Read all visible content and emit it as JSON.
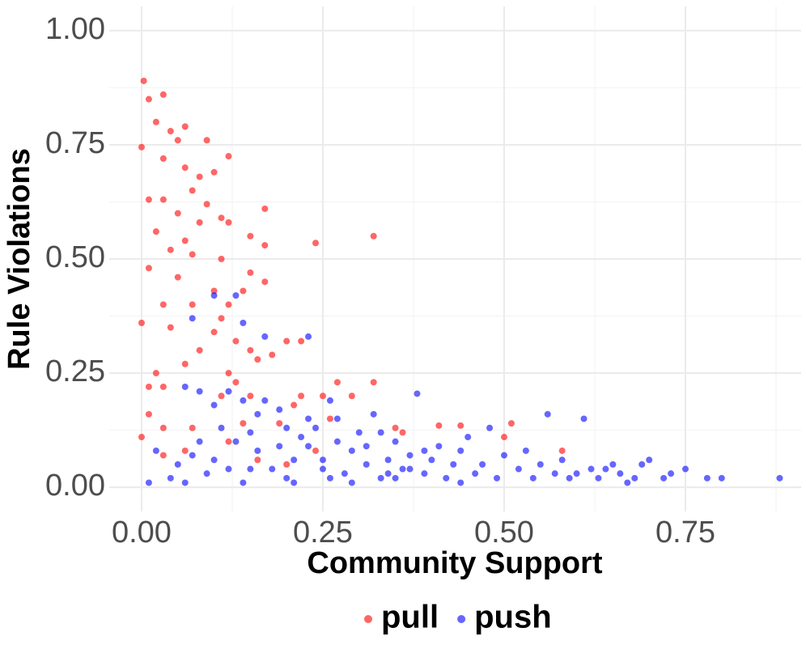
{
  "chart_data": {
    "type": "scatter",
    "xlabel": "Community Support",
    "ylabel": "Rule Violations",
    "xlim": [
      -0.0446,
      0.9096
    ],
    "ylim": [
      -0.053,
      1.053
    ],
    "xticks": [
      {
        "value": 0,
        "label": "0.00"
      },
      {
        "value": 0.25,
        "label": "0.25"
      },
      {
        "value": 0.5,
        "label": "0.50"
      },
      {
        "value": 0.75,
        "label": "0.75"
      }
    ],
    "yticks": [
      {
        "value": 0,
        "label": "0.00"
      },
      {
        "value": 0.25,
        "label": "0.25"
      },
      {
        "value": 0.5,
        "label": "0.50"
      },
      {
        "value": 0.75,
        "label": "0.75"
      },
      {
        "value": 1,
        "label": "1.00"
      }
    ],
    "xminor": [
      0.125,
      0.375,
      0.625,
      0.875
    ],
    "yminor": [
      0.125,
      0.375,
      0.625,
      0.875
    ],
    "grid": true,
    "legend": "bottom",
    "opacity": 0.6,
    "series": [
      {
        "name": "pull",
        "color": "#ff0000",
        "x": [
          0.003,
          0.01,
          0.03,
          0.02,
          0.04,
          0.05,
          0.0,
          0.06,
          0.09,
          0.12,
          0.03,
          0.06,
          0.08,
          0.1,
          0.07,
          0.01,
          0.03,
          0.09,
          0.05,
          0.08,
          0.12,
          0.17,
          0.15,
          0.11,
          0.02,
          0.06,
          0.17,
          0.24,
          0.32,
          0.04,
          0.07,
          0.11,
          0.01,
          0.05,
          0.1,
          0.14,
          0.15,
          0.17,
          0.03,
          0.07,
          0.11,
          0.12,
          0.0,
          0.04,
          0.1,
          0.13,
          0.08,
          0.15,
          0.18,
          0.2,
          0.22,
          0.16,
          0.06,
          0.02,
          0.12,
          0.01,
          0.03,
          0.11,
          0.13,
          0.15,
          0.21,
          0.27,
          0.32,
          0.22,
          0.25,
          0.29,
          0.01,
          0.03,
          0.07,
          0.14,
          0.19,
          0.26,
          0.35,
          0.36,
          0.41,
          0.44,
          0.51,
          0.0,
          0.03,
          0.06,
          0.12,
          0.2,
          0.24,
          0.5,
          0.58,
          0.16
        ],
        "values": [
          0.89,
          0.85,
          0.86,
          0.8,
          0.78,
          0.76,
          0.745,
          0.79,
          0.76,
          0.725,
          0.72,
          0.7,
          0.68,
          0.69,
          0.65,
          0.63,
          0.63,
          0.62,
          0.6,
          0.58,
          0.58,
          0.61,
          0.55,
          0.59,
          0.56,
          0.54,
          0.53,
          0.535,
          0.55,
          0.52,
          0.51,
          0.5,
          0.48,
          0.46,
          0.43,
          0.43,
          0.47,
          0.45,
          0.4,
          0.4,
          0.37,
          0.4,
          0.36,
          0.35,
          0.34,
          0.32,
          0.3,
          0.3,
          0.29,
          0.32,
          0.32,
          0.28,
          0.27,
          0.25,
          0.25,
          0.22,
          0.22,
          0.2,
          0.23,
          0.2,
          0.18,
          0.23,
          0.23,
          0.2,
          0.2,
          0.2,
          0.16,
          0.13,
          0.13,
          0.14,
          0.14,
          0.15,
          0.13,
          0.12,
          0.135,
          0.135,
          0.14,
          0.11,
          0.07,
          0.08,
          0.1,
          0.05,
          0.08,
          0.11,
          0.08,
          0.06
        ]
      },
      {
        "name": "push",
        "color": "#0000ff",
        "x": [
          0.01,
          0.04,
          0.06,
          0.05,
          0.07,
          0.09,
          0.1,
          0.06,
          0.08,
          0.1,
          0.12,
          0.14,
          0.16,
          0.17,
          0.19,
          0.11,
          0.13,
          0.15,
          0.16,
          0.18,
          0.2,
          0.21,
          0.22,
          0.23,
          0.24,
          0.25,
          0.26,
          0.27,
          0.28,
          0.29,
          0.3,
          0.31,
          0.32,
          0.33,
          0.34,
          0.35,
          0.36,
          0.37,
          0.38,
          0.39,
          0.4,
          0.41,
          0.42,
          0.43,
          0.44,
          0.45,
          0.46,
          0.47,
          0.48,
          0.49,
          0.5,
          0.52,
          0.54,
          0.55,
          0.56,
          0.57,
          0.58,
          0.59,
          0.61,
          0.62,
          0.63,
          0.65,
          0.66,
          0.68,
          0.7,
          0.72,
          0.75,
          0.78,
          0.8,
          0.88,
          0.13,
          0.1,
          0.07,
          0.14,
          0.17,
          0.23,
          0.15,
          0.19,
          0.21,
          0.23,
          0.25,
          0.27,
          0.29,
          0.31,
          0.33,
          0.35,
          0.37,
          0.39,
          0.12,
          0.08,
          0.14,
          0.2,
          0.26,
          0.34,
          0.44,
          0.53,
          0.6,
          0.67,
          0.73,
          0.02,
          0.64,
          0.69
        ],
        "values": [
          0.01,
          0.02,
          0.01,
          0.05,
          0.07,
          0.03,
          0.06,
          0.22,
          0.21,
          0.18,
          0.21,
          0.19,
          0.16,
          0.19,
          0.17,
          0.13,
          0.1,
          0.12,
          0.08,
          0.04,
          0.02,
          0.06,
          0.11,
          0.09,
          0.13,
          0.06,
          0.19,
          0.15,
          0.03,
          0.08,
          0.12,
          0.05,
          0.16,
          0.02,
          0.06,
          0.1,
          0.04,
          0.07,
          0.205,
          0.03,
          0.06,
          0.09,
          0.02,
          0.05,
          0.08,
          0.11,
          0.03,
          0.05,
          0.13,
          0.02,
          0.07,
          0.04,
          0.02,
          0.05,
          0.16,
          0.03,
          0.06,
          0.02,
          0.15,
          0.04,
          0.02,
          0.05,
          0.03,
          0.02,
          0.06,
          0.02,
          0.04,
          0.02,
          0.02,
          0.02,
          0.42,
          0.42,
          0.37,
          0.36,
          0.33,
          0.33,
          0.04,
          0.09,
          0.01,
          0.15,
          0.04,
          0.1,
          0.01,
          0.09,
          0.12,
          0.02,
          0.04,
          0.08,
          0.04,
          0.1,
          0.01,
          0.13,
          0.02,
          0.03,
          0.01,
          0.08,
          0.03,
          0.01,
          0.03,
          0.08,
          0.04,
          0.05
        ]
      }
    ]
  }
}
